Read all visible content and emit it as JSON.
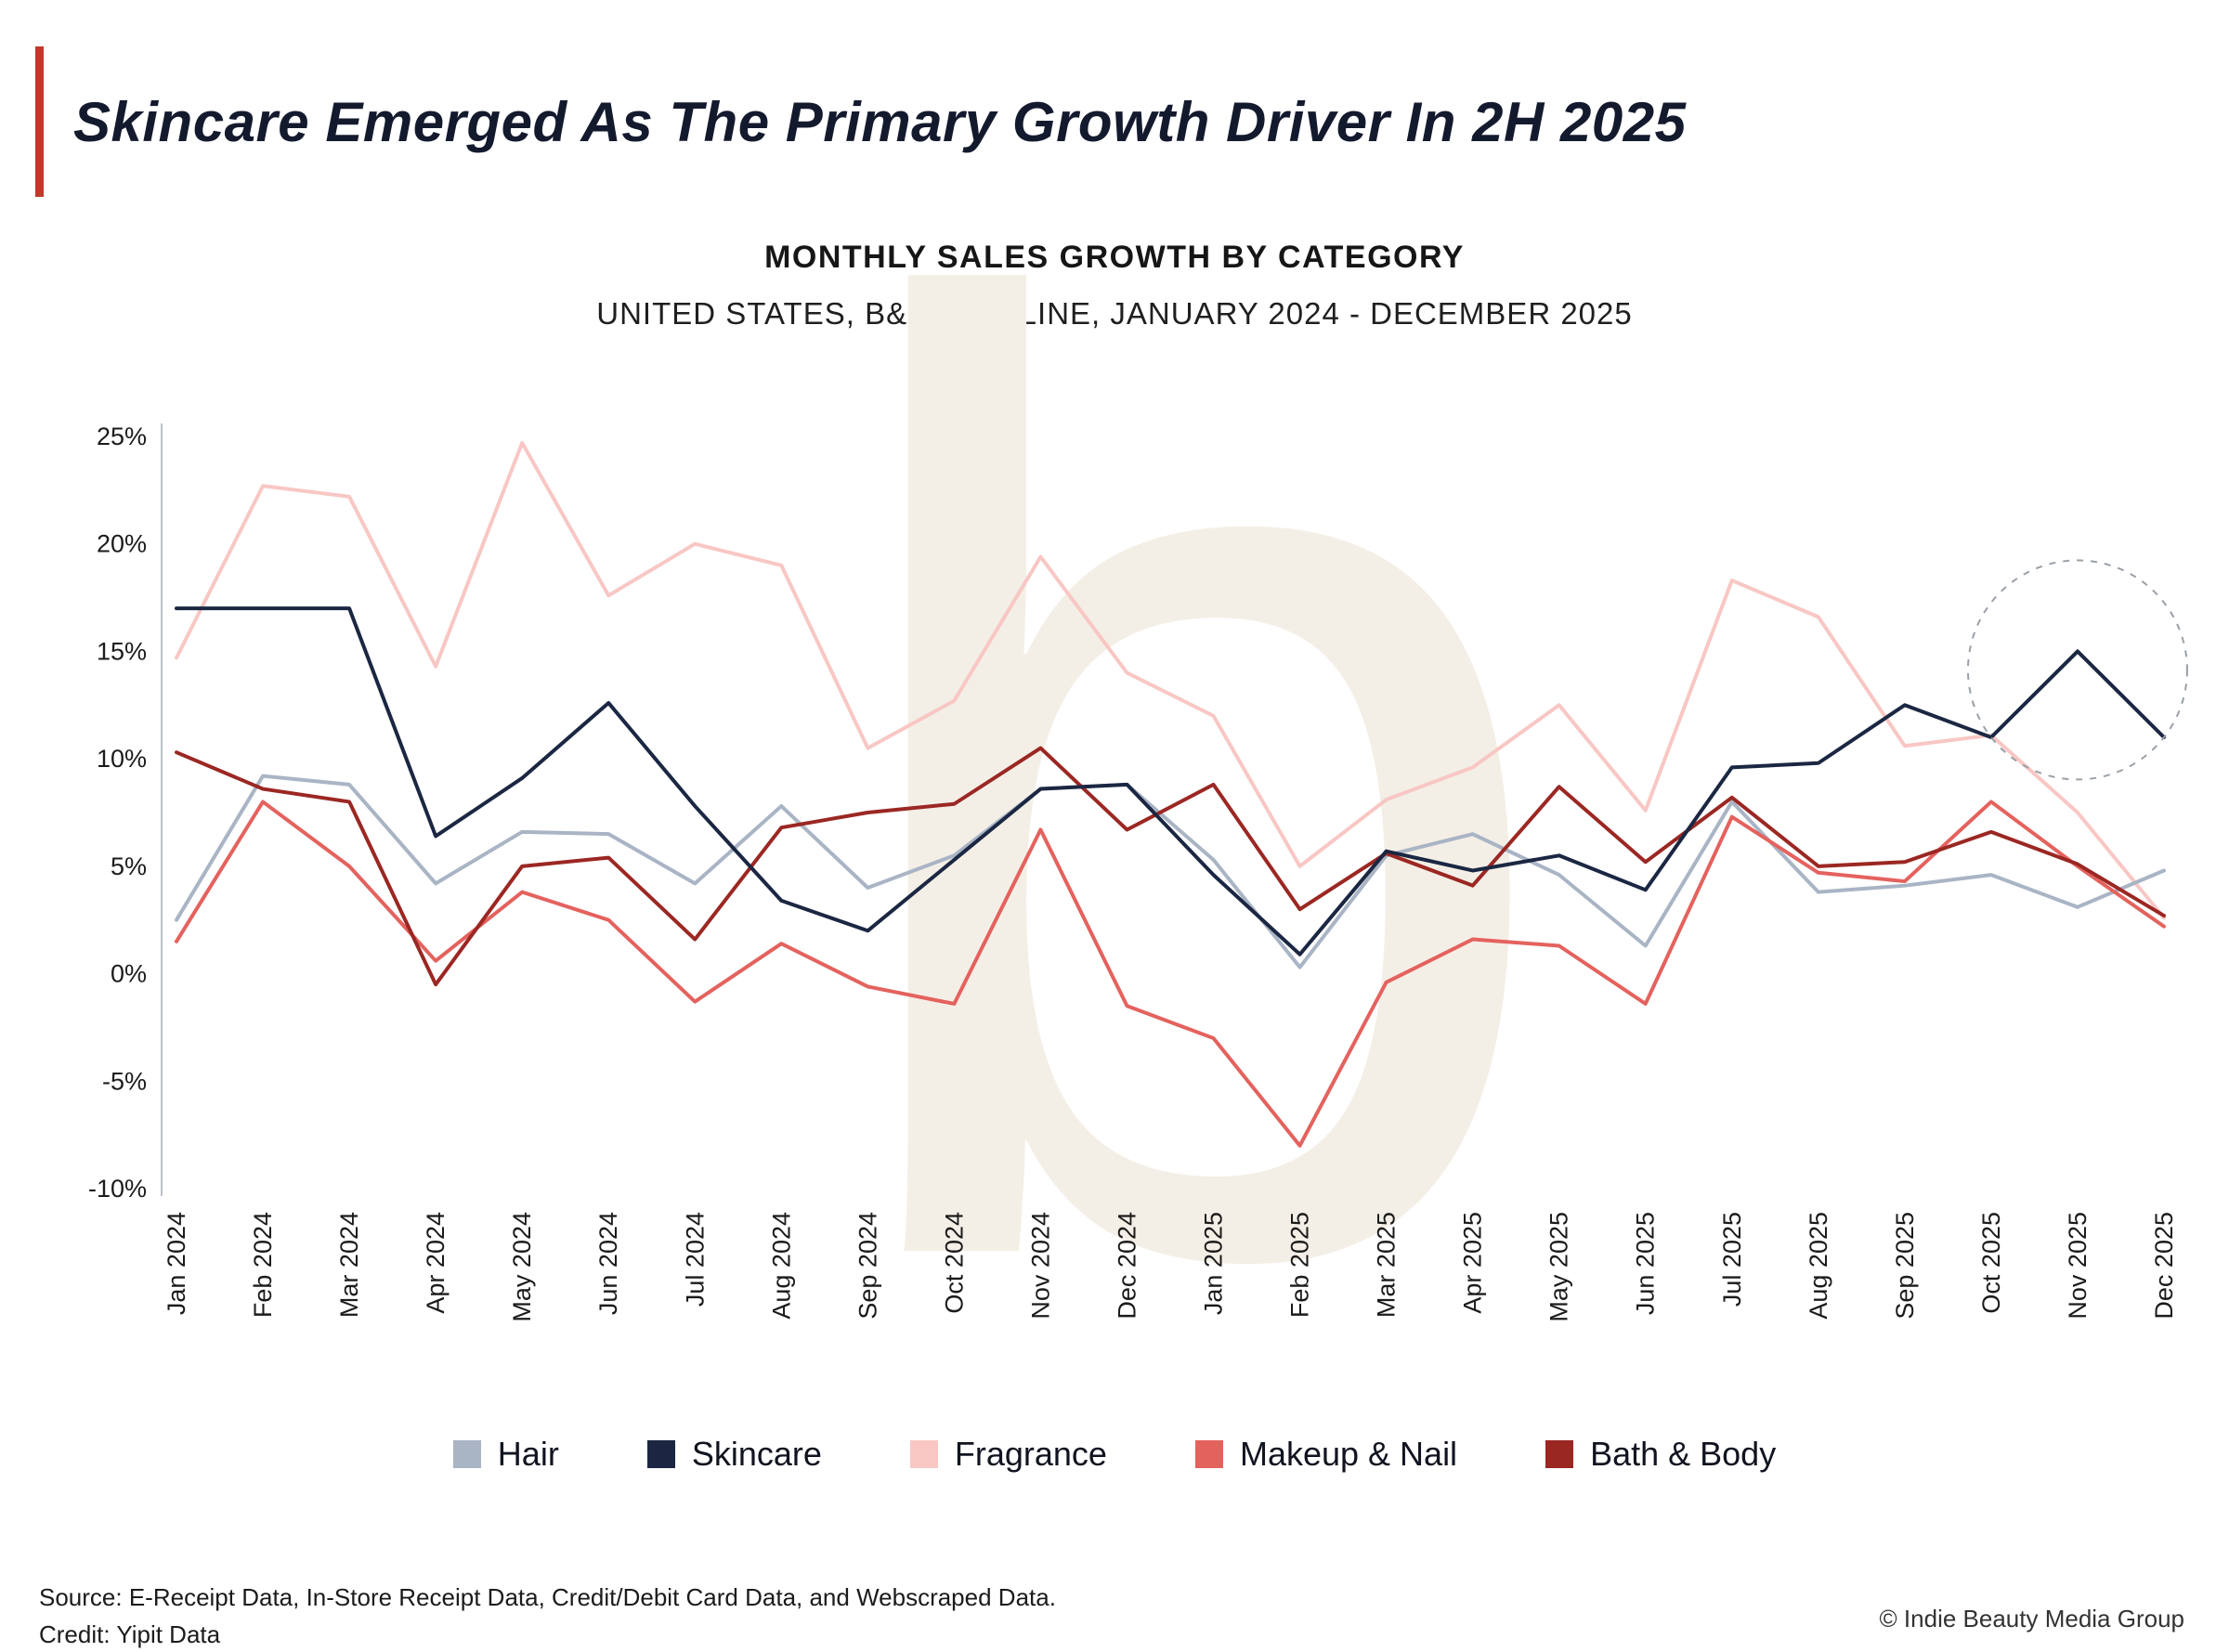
{
  "page": {
    "title": "Skincare Emerged As The Primary Growth Driver In 2H 2025",
    "watermark_letter": "b",
    "accent_color": "#c0392b",
    "footer": {
      "source": "Source: E-Receipt Data, In-Store Receipt Data, Credit/Debit Card Data, and Webscraped Data.",
      "credit": "Credit: Yipit Data",
      "copyright": "© Indie Beauty Media Group"
    }
  },
  "chart_data": {
    "type": "line",
    "title": "MONTHLY SALES GROWTH BY CATEGORY",
    "subtitle": "UNITED STATES, B&M + ONLINE, JANUARY 2024 - DECEMBER 2025",
    "x": [
      "Jan 2024",
      "Feb 2024",
      "Mar 2024",
      "Apr 2024",
      "May 2024",
      "Jun 2024",
      "Jul 2024",
      "Aug 2024",
      "Sep 2024",
      "Oct 2024",
      "Nov 2024",
      "Dec 2024",
      "Jan 2025",
      "Feb 2025",
      "Mar 2025",
      "Apr 2025",
      "May 2025",
      "Jun 2025",
      "Jul 2025",
      "Aug 2025",
      "Sep 2025",
      "Oct 2025",
      "Nov 2025",
      "Dec 2025"
    ],
    "ylim": [
      -10,
      25
    ],
    "ytick_step": 5,
    "ytick_suffix": "%",
    "grid": false,
    "legend_position": "bottom",
    "series": [
      {
        "name": "Hair",
        "color": "#a9b4c5",
        "values": [
          2.5,
          9.2,
          8.8,
          4.2,
          6.6,
          6.5,
          4.2,
          7.8,
          4.0,
          5.5,
          8.6,
          8.8,
          5.3,
          0.3,
          5.5,
          6.5,
          4.6,
          1.3,
          8.0,
          3.8,
          4.1,
          4.6,
          3.1,
          4.8
        ]
      },
      {
        "name": "Skincare",
        "color": "#1b2742",
        "values": [
          17.0,
          17.0,
          17.0,
          6.4,
          9.1,
          12.6,
          7.8,
          3.4,
          2.0,
          5.3,
          8.6,
          8.8,
          4.6,
          0.9,
          5.7,
          4.8,
          5.5,
          3.9,
          9.6,
          9.8,
          12.5,
          11.0,
          15.0,
          11.0
        ]
      },
      {
        "name": "Fragrance",
        "color": "#f8c7c4",
        "values": [
          14.7,
          22.7,
          22.2,
          14.3,
          24.7,
          17.6,
          20.0,
          19.0,
          10.5,
          12.7,
          19.4,
          14.0,
          12.0,
          5.0,
          8.1,
          9.6,
          12.5,
          7.6,
          18.3,
          16.6,
          10.6,
          11.1,
          7.5,
          2.6
        ]
      },
      {
        "name": "Makeup & Nail",
        "color": "#e4625e",
        "values": [
          1.5,
          8.0,
          5.0,
          0.6,
          3.8,
          2.5,
          -1.3,
          1.4,
          -0.6,
          -1.4,
          6.7,
          -1.5,
          -3.0,
          -8.0,
          -0.4,
          1.6,
          1.3,
          -1.4,
          7.3,
          4.7,
          4.3,
          8.0,
          5.0,
          2.2
        ]
      },
      {
        "name": "Bath & Body",
        "color": "#9b2723",
        "values": [
          10.3,
          8.6,
          8.0,
          -0.5,
          5.0,
          5.4,
          1.6,
          6.8,
          7.5,
          7.9,
          10.5,
          6.7,
          8.8,
          3.0,
          5.6,
          4.1,
          8.7,
          5.2,
          8.2,
          5.0,
          5.2,
          6.6,
          5.1,
          2.7
        ]
      }
    ],
    "annotation": {
      "shape": "dashed-circle",
      "series": "Skincare",
      "x_index": 22,
      "radius": 118
    }
  }
}
